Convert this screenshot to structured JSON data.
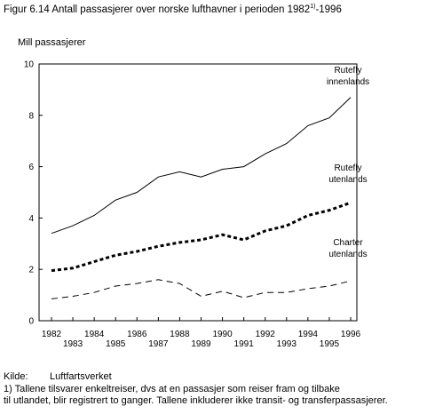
{
  "title_main": "Figur 6.14 Antall passasjerer over norske lufthavner i perioden 1982",
  "title_sup": "1)",
  "title_end": "-1996",
  "ylabel": "Mill passasjerer",
  "source_label": "Kilde:",
  "source_value": "Luftfartsverket",
  "footnote_line1": "1)  Tallene tilsvarer enkeltreiser, dvs at en passasjer som reiser fram og tilbake",
  "footnote_line2": "til utlandet, blir registrert to ganger. Tallene  inkluderer ikke transit- og transferpassasjerer.",
  "chart_data": {
    "type": "line",
    "x": [
      1982,
      1983,
      1984,
      1985,
      1986,
      1987,
      1988,
      1989,
      1990,
      1991,
      1992,
      1993,
      1994,
      1995,
      1996
    ],
    "ylabel": "Mill passasjerer",
    "ylim": [
      0,
      10
    ],
    "yticks": [
      0,
      2,
      4,
      6,
      8,
      10
    ],
    "grid": false,
    "series": [
      {
        "name": "Rutefly innenlands",
        "label_lines": [
          "Rutefly",
          "innenlands"
        ],
        "style": "solid",
        "values": [
          3.4,
          3.7,
          4.1,
          4.7,
          5.0,
          5.6,
          5.8,
          5.6,
          5.9,
          6.0,
          6.5,
          6.9,
          7.6,
          7.9,
          8.7
        ]
      },
      {
        "name": "Rutefly utenlands",
        "label_lines": [
          "Rutefly",
          "utenlands"
        ],
        "style": "dotted-bold",
        "values": [
          1.95,
          2.05,
          2.3,
          2.55,
          2.7,
          2.9,
          3.05,
          3.15,
          3.35,
          3.15,
          3.5,
          3.7,
          4.1,
          4.3,
          4.6
        ]
      },
      {
        "name": "Charter utenlands",
        "label_lines": [
          "Charter",
          "utenlands"
        ],
        "style": "dashed",
        "values": [
          0.85,
          0.95,
          1.1,
          1.35,
          1.45,
          1.6,
          1.45,
          0.95,
          1.15,
          0.9,
          1.1,
          1.1,
          1.25,
          1.35,
          1.55
        ]
      }
    ],
    "line_color": "#000000"
  }
}
